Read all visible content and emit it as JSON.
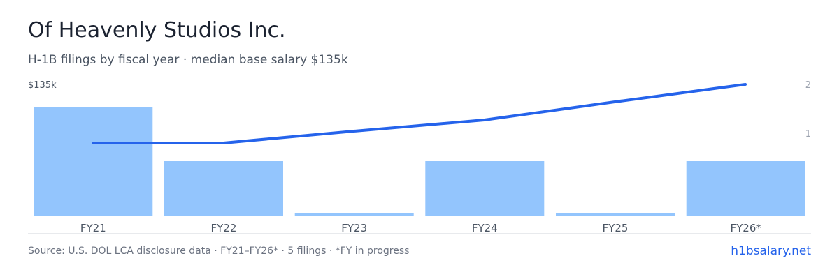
{
  "header": {
    "title": "Of Heavenly Studios Inc.",
    "subtitle": "H-1B filings by fiscal year · median base salary $135k"
  },
  "footer": {
    "source": "Source: U.S. DOL LCA disclosure data · FY21–FY26* · 5 filings · *FY in progress",
    "brand": "h1bsalary.net"
  },
  "colors": {
    "bar": "#93c5fd",
    "line": "#2563eb",
    "axis": "#d1d5db",
    "tick": "#9ca3af",
    "label": "#4b5563"
  },
  "chart_data": {
    "type": "bar",
    "categories": [
      "FY21",
      "FY22",
      "FY23",
      "FY24",
      "FY25",
      "FY26*"
    ],
    "series": [
      {
        "type": "bar",
        "axis": "left",
        "values": [
          135000,
          67500,
          0,
          67500,
          0,
          67500
        ]
      },
      {
        "type": "line",
        "axis": "right",
        "values": [
          1,
          1,
          1.4,
          1.4,
          1.7,
          2
        ]
      }
    ],
    "left_axis": {
      "tick_label": "$135k",
      "max": 135000
    },
    "right_axis": {
      "ticks": [
        "1",
        "2"
      ],
      "ylim": [
        0,
        2
      ]
    },
    "legend": "none",
    "grid": false
  }
}
